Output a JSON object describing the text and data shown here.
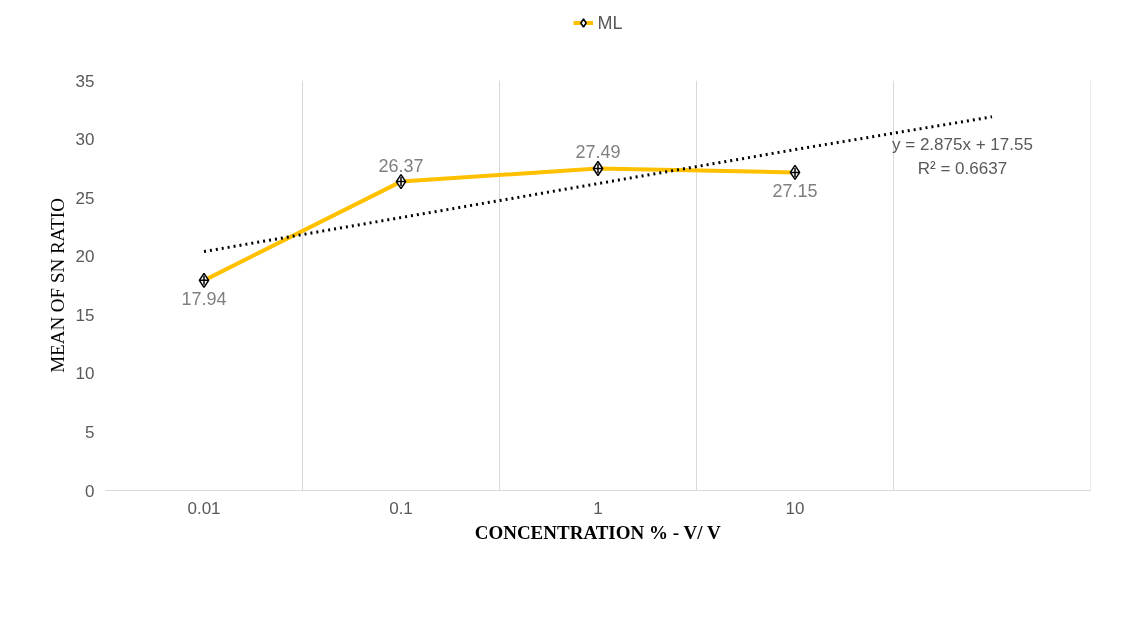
{
  "chart_data": {
    "type": "line",
    "xlabel": "CONCENTRATION % - V/ V",
    "ylabel": "MEAN OF SN RATIO",
    "categories": [
      "0.01",
      "0.1",
      "1",
      "10",
      null
    ],
    "series": [
      {
        "name": "ML",
        "color": "#ffc000",
        "values": [
          17.94,
          26.37,
          27.49,
          27.15,
          null
        ],
        "value_labels": [
          "17.94",
          "26.37",
          "27.49",
          "27.15",
          null
        ]
      },
      {
        "color": "#000000",
        "line_style": "dotted",
        "marker": "none",
        "values": [
          20.4,
          23.3,
          26.2,
          29.1,
          31.9
        ]
      }
    ],
    "ylim": [
      0,
      35
    ],
    "yticks": [
      0,
      5,
      10,
      15,
      20,
      25,
      30,
      35
    ],
    "marker": "diamond",
    "grid": "x",
    "legend": "top",
    "annotations": [
      "y = 2.875x + 17.55",
      "R² = 0.6637"
    ]
  }
}
